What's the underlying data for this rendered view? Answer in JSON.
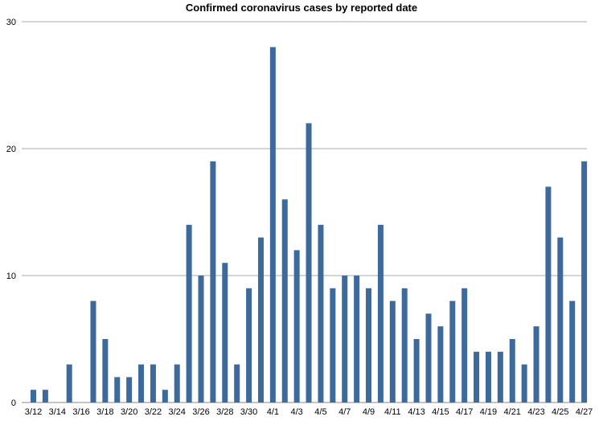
{
  "chart_data": {
    "type": "bar",
    "title": "Confirmed coronavirus cases by reported date",
    "xlabel": "",
    "ylabel": "",
    "ylim": [
      0,
      30
    ],
    "yticks": [
      0,
      10,
      20,
      30
    ],
    "grid": true,
    "color": "#3d6a9b",
    "categories": [
      "3/12",
      "3/13",
      "3/14",
      "3/15",
      "3/16",
      "3/17",
      "3/18",
      "3/19",
      "3/20",
      "3/21",
      "3/22",
      "3/23",
      "3/24",
      "3/25",
      "3/26",
      "3/27",
      "3/28",
      "3/29",
      "3/30",
      "3/31",
      "4/1",
      "4/2",
      "4/3",
      "4/4",
      "4/5",
      "4/6",
      "4/7",
      "4/8",
      "4/9",
      "4/10",
      "4/11",
      "4/12",
      "4/13",
      "4/14",
      "4/15",
      "4/16",
      "4/17",
      "4/18",
      "4/19",
      "4/20",
      "4/21",
      "4/22",
      "4/23",
      "4/24",
      "4/25",
      "4/26",
      "4/27"
    ],
    "values": [
      1,
      1,
      0,
      3,
      0,
      8,
      5,
      2,
      2,
      3,
      3,
      1,
      3,
      14,
      10,
      19,
      11,
      3,
      9,
      13,
      28,
      16,
      12,
      22,
      14,
      9,
      10,
      10,
      9,
      14,
      8,
      9,
      5,
      7,
      6,
      8,
      9,
      4,
      4,
      4,
      5,
      3,
      6,
      17,
      13,
      8,
      19
    ],
    "xtick_labels": [
      "3/12",
      "3/14",
      "3/16",
      "3/18",
      "3/20",
      "3/22",
      "3/24",
      "3/26",
      "3/28",
      "3/30",
      "4/1",
      "4/3",
      "4/5",
      "4/7",
      "4/9",
      "4/11",
      "4/13",
      "4/15",
      "4/17",
      "4/19",
      "4/21",
      "4/23",
      "4/25",
      "4/27"
    ]
  }
}
